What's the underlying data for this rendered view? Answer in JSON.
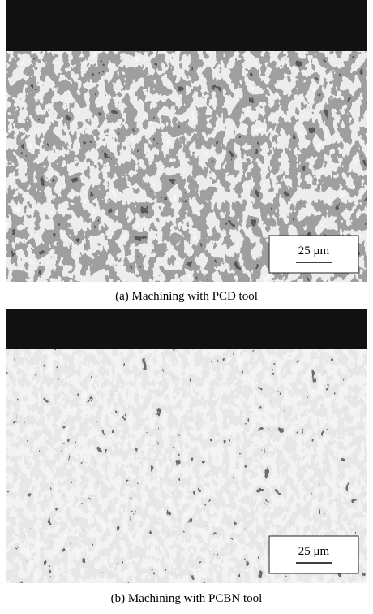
{
  "panels": [
    {
      "scale_bar": "25 μm",
      "caption": "(a) Machining with PCD tool"
    },
    {
      "scale_bar": "25 μm",
      "caption": "(b) Machining with PCBN tool"
    }
  ]
}
